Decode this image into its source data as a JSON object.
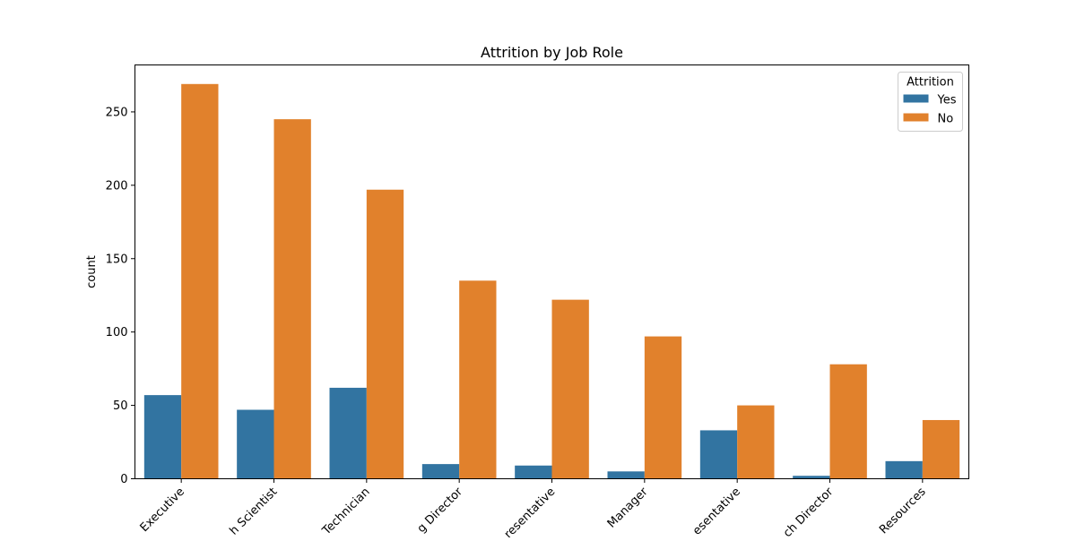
{
  "chart_data": {
    "type": "bar",
    "title": "Attrition by Job Role",
    "xlabel": "",
    "ylabel": "count",
    "categories": [
      "Sales Executive",
      "Research Scientist",
      "Laboratory Technician",
      "Manufacturing Director",
      "Healthcare Representative",
      "Manager",
      "Sales Representative",
      "Research Director",
      "Human Resources"
    ],
    "tick_labels_visible": [
      "Executive",
      "h Scientist",
      "Technician",
      "g Director",
      "resentative",
      "Manager",
      "esentative",
      "ch Director",
      "Resources"
    ],
    "series": [
      {
        "name": "Yes",
        "color": "#3274a1",
        "values": [
          57,
          47,
          62,
          10,
          9,
          5,
          33,
          2,
          12
        ]
      },
      {
        "name": "No",
        "color": "#e1812c",
        "values": [
          269,
          245,
          197,
          135,
          122,
          97,
          50,
          78,
          40
        ]
      }
    ],
    "ylim": [
      0,
      282
    ],
    "yticks": [
      0,
      50,
      100,
      150,
      200,
      250
    ],
    "legend": {
      "title": "Attrition",
      "position": "top-right"
    },
    "grid": false
  }
}
